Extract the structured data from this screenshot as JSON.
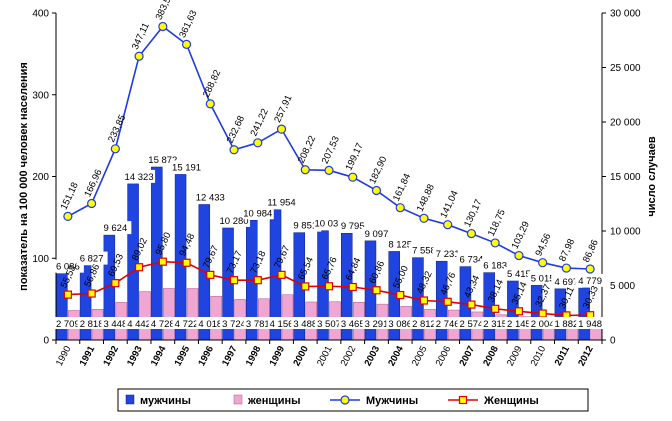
{
  "chart_data": {
    "type": "bar",
    "ylabel_left": "показатель на 100 000 человек населения",
    "ylabel_right": "число случаев",
    "ylim_left": [
      0,
      400
    ],
    "ylim_right": [
      0,
      30000
    ],
    "yticks_left": [
      "0",
      "100",
      "200",
      "300",
      "400"
    ],
    "yticks_right": [
      "0",
      "5 000",
      "10 000",
      "15 000",
      "20 000",
      "25 000",
      "30 000"
    ],
    "categories": [
      "1990",
      "1991",
      "1992",
      "1993",
      "1994",
      "1995",
      "1996",
      "1997",
      "1998",
      "1999",
      "2000",
      "2001",
      "2002",
      "2003",
      "2004",
      "2005",
      "2006",
      "2007",
      "2008",
      "2009",
      "2010",
      "2011",
      "2012"
    ],
    "bold_categories": [
      "1991",
      "1992",
      "1993",
      "1994",
      "1995",
      "1996",
      "1997",
      "1998",
      "1999",
      "2000",
      "2003",
      "2004",
      "2007",
      "2008",
      "2011",
      "2012"
    ],
    "series": [
      {
        "name": "мужчины",
        "kind": "bar",
        "axis": "right",
        "color": "#1f44e0",
        "values": [
          6086,
          6827,
          9624,
          14323,
          15872,
          15191,
          12433,
          10280,
          10984,
          11954,
          9851,
          10030,
          9795,
          9097,
          8125,
          7558,
          7231,
          6734,
          6183,
          5415,
          5015,
          4697,
          4779
        ],
        "labels": [
          "6 086",
          "6 827",
          "9 624",
          "14 323",
          "15 872",
          "15 191",
          "12 433",
          "10 280",
          "10 984",
          "11 954",
          "9 851",
          "10 030",
          "9 795",
          "9 097",
          "8 125",
          "7 558",
          "7 231",
          "6 734",
          "6 183",
          "5 415",
          "5 015",
          "4 697",
          "4 779"
        ]
      },
      {
        "name": "женщины",
        "kind": "bar",
        "axis": "right",
        "color": "#f0a6d2",
        "values": [
          2709,
          2818,
          3448,
          4442,
          4728,
          4722,
          4018,
          3724,
          3781,
          4156,
          3488,
          3507,
          3465,
          3291,
          3086,
          2812,
          2746,
          2574,
          2315,
          2145,
          2004,
          1882,
          1948
        ],
        "labels": [
          "2 709",
          "2 818",
          "3 448",
          "4 442",
          "4 728",
          "4 722",
          "4 018",
          "3 724",
          "3 781",
          "4 156",
          "3 488",
          "3 507",
          "3 465",
          "3 291",
          "3 086",
          "2 812",
          "2 746",
          "2 574",
          "2 315",
          "2 145",
          "2 004",
          "1 882",
          "1 948"
        ]
      },
      {
        "name": "Мужчины",
        "kind": "line",
        "axis": "left",
        "color": "#1f3ce0",
        "marker_fill": "#ffff00",
        "values": [
          151.18,
          166.96,
          233.85,
          347.11,
          383.5,
          361.63,
          288.82,
          232.68,
          241.22,
          257.91,
          208.22,
          207.53,
          199.17,
          182.9,
          161.84,
          148.88,
          141.04,
          130.17,
          118.75,
          103.29,
          94.56,
          87.98,
          86.86
        ],
        "labels": [
          "151,18",
          "166,96",
          "233,85",
          "347,11",
          "383,50",
          "361,63",
          "288,82",
          "232,68",
          "241,22",
          "257,91",
          "208,22",
          "207,53",
          "199,17",
          "182,90",
          "161,84",
          "148,88",
          "141,04",
          "130,17",
          "118,75",
          "103,29",
          "94,56",
          "87,98",
          "86,86"
        ]
      },
      {
        "name": "Женщины",
        "kind": "line",
        "axis": "left",
        "color": "#e00000",
        "marker_fill": "#ffff00",
        "values": [
          55.53,
          56.86,
          69.53,
          89.02,
          95.8,
          94.48,
          79.67,
          73.17,
          73.18,
          79.67,
          65.54,
          65.76,
          64.84,
          60.86,
          55.0,
          48.32,
          46.76,
          43.34,
          38.14,
          35.14,
          32.37,
          30.11,
          30.33
        ],
        "labels": [
          "55,53",
          "56,86",
          "69,53",
          "89,02",
          "95,80",
          "94,48",
          "79,67",
          "73,17",
          "73,18",
          "79,67",
          "65,54",
          "65,76",
          "64,84",
          "60,86",
          "55,00",
          "48,32",
          "46,76",
          "43,34",
          "38,14",
          "35,14",
          "32,37",
          "30,11",
          "30,33"
        ]
      }
    ],
    "legend": {
      "position": "bottom"
    },
    "grid": false
  }
}
